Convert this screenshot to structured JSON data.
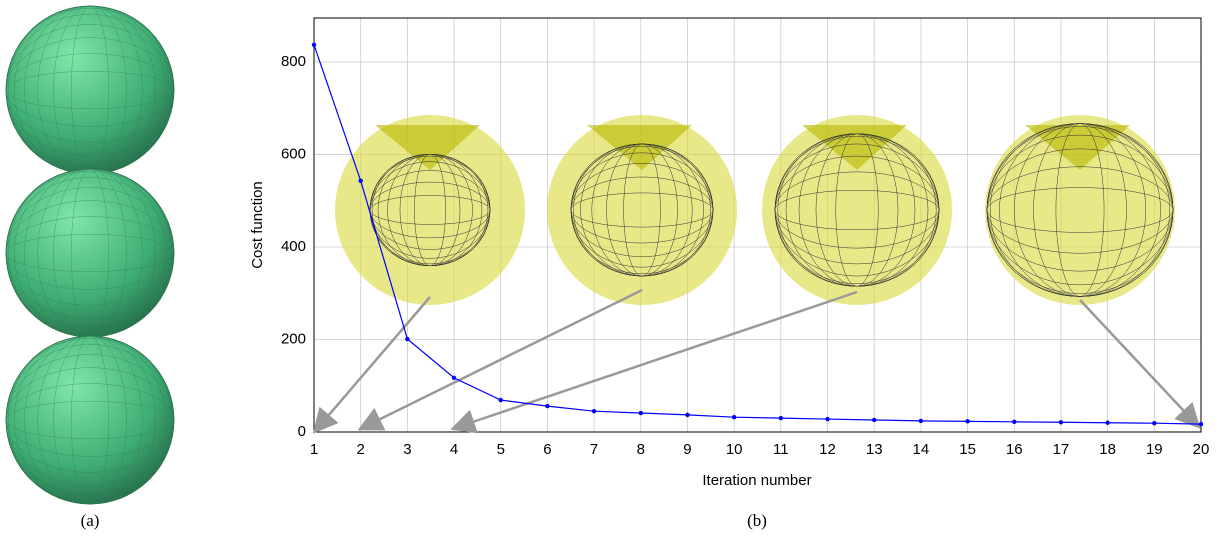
{
  "chart_data": {
    "type": "line",
    "x": [
      1,
      2,
      3,
      4,
      5,
      6,
      7,
      8,
      9,
      10,
      11,
      12,
      13,
      14,
      15,
      16,
      17,
      18,
      19,
      20
    ],
    "series": [
      {
        "color": "#0000ff",
        "values": [
          837,
          543,
          201,
          117,
          69,
          56,
          45,
          41,
          37,
          32,
          30,
          28,
          26,
          24,
          23,
          22,
          21,
          20,
          19,
          17
        ]
      }
    ],
    "xlim": [
      1,
      20
    ],
    "xticks": [
      1,
      2,
      3,
      4,
      5,
      6,
      7,
      8,
      9,
      10,
      11,
      12,
      13,
      14,
      15,
      16,
      17,
      18,
      19,
      20
    ],
    "ylim": [
      0,
      895
    ],
    "yticks": [
      0,
      200,
      400,
      600,
      800
    ],
    "xlabel": "Iteration number",
    "ylabel": "Cost function",
    "grid": true
  },
  "captions": [
    "(a)",
    "(b)"
  ]
}
